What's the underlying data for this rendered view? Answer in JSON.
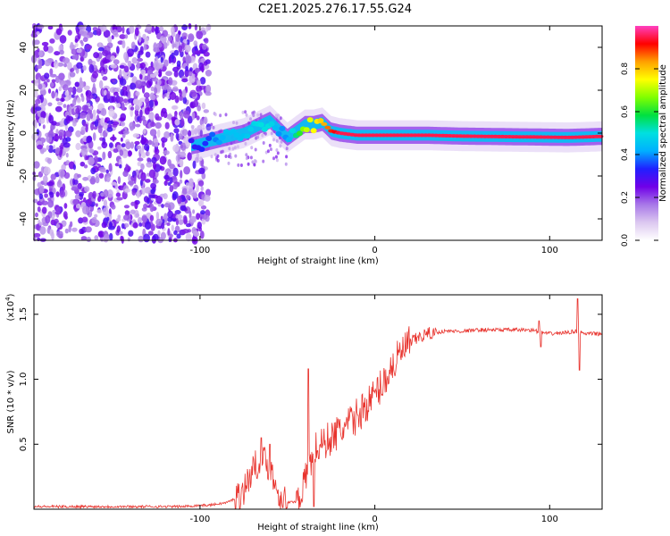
{
  "title": "C2E1.2025.276.17.55.G24",
  "chart_data": [
    {
      "type": "heatmap",
      "xlabel": "Height of straight line (km)",
      "ylabel": "Frequency (Hz)",
      "xlim": [
        -195,
        130
      ],
      "ylim": [
        -50,
        50
      ],
      "x_ticks": [
        -100,
        0,
        100
      ],
      "y_ticks": [
        -40,
        -20,
        0,
        20,
        40
      ],
      "x_tick_labels": [
        "-100",
        "0",
        "100"
      ],
      "y_tick_labels": [
        "-40",
        "-20",
        "0",
        "20",
        "40"
      ],
      "colorbar": {
        "label": "Normalized spectral amplitude",
        "range": [
          0,
          1
        ],
        "ticks": [
          0.0,
          0.2,
          0.4,
          0.6,
          0.8
        ],
        "tick_labels": [
          "0.0",
          "0.2",
          "0.4",
          "0.6",
          "0.8"
        ],
        "colors": [
          "#ffffff",
          "#dcc8f0",
          "#a878e8",
          "#7000e8",
          "#2020ff",
          "#00b0ff",
          "#00e0e0",
          "#00e040",
          "#80ff00",
          "#ffff00",
          "#ffa000",
          "#ff0000",
          "#ff40c0"
        ]
      },
      "ridge": {
        "x": [
          -105,
          -95,
          -85,
          -75,
          -65,
          -60,
          -55,
          -50,
          -45,
          -40,
          -35,
          -30,
          -25,
          -20,
          -10,
          0,
          10,
          20,
          30,
          40,
          50,
          60,
          70,
          80,
          90,
          100,
          110,
          120,
          130
        ],
        "freq": [
          -6,
          -4,
          -2,
          0,
          4,
          6,
          2,
          -2,
          1,
          4,
          4,
          5,
          1,
          0,
          -1,
          -1,
          -1,
          -1,
          -1,
          -1.2,
          -1.4,
          -1.5,
          -1.6,
          -1.7,
          -1.8,
          -1.9,
          -2,
          -1.8,
          -1.5
        ],
        "peak_amplitude": [
          0.3,
          0.35,
          0.45,
          0.45,
          0.5,
          0.5,
          0.4,
          0.4,
          0.55,
          0.7,
          0.75,
          0.8,
          0.9,
          0.95,
          0.95,
          0.95,
          0.95,
          0.95,
          0.95,
          0.95,
          0.95,
          0.95,
          0.95,
          0.95,
          0.95,
          0.95,
          0.95,
          0.95,
          0.95
        ]
      }
    },
    {
      "type": "line",
      "xlabel": "Height of straight line (km)",
      "ylabel": "SNR (10 * v/v)",
      "y_multiplier_label": "(x10",
      "y_multiplier_exp": "4",
      "y_multiplier_close": ")",
      "xlim": [
        -195,
        130
      ],
      "ylim": [
        0,
        1.65
      ],
      "x_ticks": [
        -100,
        0,
        100
      ],
      "y_ticks": [
        0.5,
        1.0,
        1.5
      ],
      "x_tick_labels": [
        "-100",
        "0",
        "100"
      ],
      "y_tick_labels": [
        "0.5",
        "1.0",
        "1.5"
      ],
      "color": "#e8322c",
      "series": [
        {
          "name": "SNR",
          "x": [
            -195,
            -180,
            -160,
            -140,
            -120,
            -110,
            -100,
            -95,
            -90,
            -85,
            -80,
            -75,
            -70,
            -65,
            -60,
            -55,
            -50,
            -45,
            -40,
            -35,
            -30,
            -25,
            -20,
            -15,
            -10,
            -5,
            0,
            5,
            10,
            15,
            20,
            25,
            30,
            35,
            40,
            50,
            60,
            70,
            80,
            90,
            95,
            100,
            110,
            115,
            120,
            130
          ],
          "y": [
            0.02,
            0.02,
            0.02,
            0.02,
            0.02,
            0.02,
            0.03,
            0.03,
            0.04,
            0.05,
            0.08,
            0.15,
            0.3,
            0.4,
            0.32,
            0.12,
            0.05,
            0.06,
            0.2,
            0.45,
            0.5,
            0.55,
            0.6,
            0.65,
            0.72,
            0.8,
            0.88,
            0.98,
            1.1,
            1.2,
            1.28,
            1.32,
            1.35,
            1.36,
            1.37,
            1.37,
            1.38,
            1.38,
            1.38,
            1.38,
            1.36,
            1.35,
            1.36,
            1.37,
            1.35,
            1.35
          ],
          "spikes": [
            {
              "x": -65,
              "y": 0.55
            },
            {
              "x": -60,
              "y": 0.5
            },
            {
              "x": -38,
              "y": 1.08
            },
            {
              "x": -35,
              "y": 0.02
            },
            {
              "x": 94,
              "y": 1.45
            },
            {
              "x": 95,
              "y": 1.25
            },
            {
              "x": 116,
              "y": 1.62
            },
            {
              "x": 117,
              "y": 1.07
            }
          ]
        }
      ]
    }
  ]
}
